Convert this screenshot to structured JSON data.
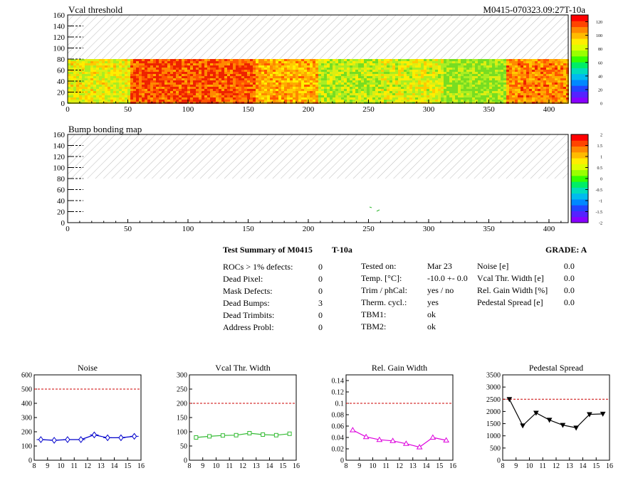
{
  "header": {
    "map_title": "Vcal threshold",
    "module_id": "M0415-070323.09:27T-10a",
    "bump_title": "Bump bonding map"
  },
  "maps": {
    "x_ticks": [
      "0",
      "50",
      "100",
      "150",
      "200",
      "250",
      "300",
      "350",
      "400"
    ],
    "y_ticks": [
      "0",
      "20",
      "40",
      "60",
      "80",
      "100",
      "120",
      "140",
      "160"
    ],
    "threshold_palette_ticks": [
      "0",
      "20",
      "40",
      "60",
      "80",
      "100",
      "120"
    ],
    "bump_palette_ticks": [
      "-2",
      "-1.5",
      "-1",
      "-0.5",
      "0",
      "0.5",
      "1",
      "1.5",
      "2"
    ]
  },
  "summary": {
    "title": "Test Summary of M0415",
    "temp_tag": "T-10a",
    "grade": "GRADE:  A",
    "col1": [
      {
        "label": "ROCs > 1% defects:",
        "value": "0"
      },
      {
        "label": "Dead Pixel:",
        "value": "0"
      },
      {
        "label": "Mask Defects:",
        "value": "0"
      },
      {
        "label": "Dead Bumps:",
        "value": "3"
      },
      {
        "label": "Dead Trimbits:",
        "value": "0"
      },
      {
        "label": "Address Probl:",
        "value": "0"
      }
    ],
    "col2": [
      {
        "label": "Tested on:",
        "value": "Mar 23"
      },
      {
        "label": "Temp. [°C]:",
        "value": "-10.0 +- 0.0"
      },
      {
        "label": "Trim / phCal:",
        "value": "yes / no"
      },
      {
        "label": "Therm. cycl.:",
        "value": "yes"
      },
      {
        "label": "TBM1:",
        "value": "ok"
      },
      {
        "label": "TBM2:",
        "value": "ok"
      }
    ],
    "col3": [
      {
        "label": "Noise [e]",
        "value": "0.0"
      },
      {
        "label": "Vcal Thr. Width [e]",
        "value": "0.0"
      },
      {
        "label": "Rel. Gain Width [%]",
        "value": "0.0"
      },
      {
        "label": "Pedestal Spread [e]",
        "value": "0.0"
      }
    ]
  },
  "chart_data": [
    {
      "type": "scatter",
      "title": "Noise",
      "color": "#0000cc",
      "marker": "diamond",
      "xlim": [
        8,
        16
      ],
      "ylim": [
        0,
        600
      ],
      "threshold": 500,
      "x_ticks": [
        "8",
        "9",
        "10",
        "11",
        "12",
        "13",
        "14",
        "15",
        "16"
      ],
      "y_ticks": [
        "0",
        "100",
        "200",
        "300",
        "400",
        "500",
        "600"
      ],
      "x": [
        8.5,
        9.5,
        10.5,
        11.5,
        12.5,
        13.5,
        14.5,
        15.5
      ],
      "y": [
        145,
        140,
        145,
        145,
        178,
        158,
        158,
        168
      ]
    },
    {
      "type": "line",
      "title": "Vcal Thr. Width",
      "color": "#33bb33",
      "marker": "square",
      "xlim": [
        8,
        16
      ],
      "ylim": [
        0,
        300
      ],
      "threshold": 200,
      "x_ticks": [
        "8",
        "9",
        "10",
        "11",
        "12",
        "13",
        "14",
        "15",
        "16"
      ],
      "y_ticks": [
        "0",
        "50",
        "100",
        "150",
        "200",
        "250",
        "300"
      ],
      "x": [
        8.5,
        9.5,
        10.5,
        11.5,
        12.5,
        13.5,
        14.5,
        15.5
      ],
      "y": [
        80,
        84,
        87,
        88,
        95,
        90,
        88,
        93
      ]
    },
    {
      "type": "line",
      "title": "Rel. Gain Width",
      "color": "#dd00dd",
      "marker": "triangle",
      "xlim": [
        8,
        16
      ],
      "ylim": [
        0,
        0.15
      ],
      "threshold": 0.1,
      "x_ticks": [
        "8",
        "9",
        "10",
        "11",
        "12",
        "13",
        "14",
        "15",
        "16"
      ],
      "y_ticks": [
        "0",
        "0.02",
        "0.04",
        "0.06",
        "0.08",
        "0.1",
        "0.12",
        "0.14"
      ],
      "x": [
        8.5,
        9.5,
        10.5,
        11.5,
        12.5,
        13.5,
        14.5,
        15.5
      ],
      "y": [
        0.053,
        0.041,
        0.036,
        0.034,
        0.029,
        0.023,
        0.04,
        0.035
      ]
    },
    {
      "type": "line",
      "title": "Pedestal Spread",
      "color": "#000000",
      "marker": "triangle-down",
      "xlim": [
        8,
        16
      ],
      "ylim": [
        0,
        3500
      ],
      "threshold": 2500,
      "x_ticks": [
        "8",
        "9",
        "10",
        "11",
        "12",
        "13",
        "14",
        "15",
        "16"
      ],
      "y_ticks": [
        "0",
        "500",
        "1000",
        "1500",
        "2000",
        "2500",
        "3000",
        "3500"
      ],
      "x": [
        8.5,
        9.5,
        10.5,
        11.5,
        12.5,
        13.5,
        14.5,
        15.5
      ],
      "y": [
        2500,
        1420,
        1940,
        1650,
        1440,
        1330,
        1880,
        1900
      ]
    }
  ]
}
